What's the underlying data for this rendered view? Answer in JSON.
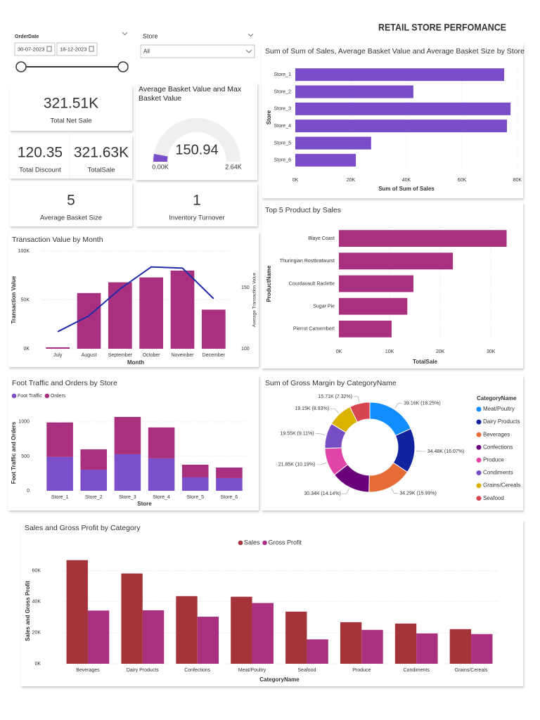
{
  "header": {
    "title": "RETAIL STORE PERFOMANCE"
  },
  "filters": [
    {
      "label": "OrderDate",
      "start": "30-07-2023",
      "end": "18-12-2023"
    },
    {
      "label": "Store",
      "value": "All"
    }
  ],
  "cards": [
    {
      "value": "321.51K",
      "label": "Total Net Sale"
    },
    {
      "value": "120.35",
      "label": "Total Discount"
    },
    {
      "value": "321.63K",
      "label": "TotalSale"
    },
    {
      "value": "5",
      "label": "Average Basket Size"
    },
    {
      "value": "1",
      "label": "Inventory Turnover"
    }
  ],
  "chart_data": [
    {
      "type": "gauge",
      "title": "Average Basket Value and Max Basket Value",
      "value": 150.94,
      "ylim": [
        0,
        2640
      ],
      "yticks": [
        {
          "value": 0,
          "label": "0.00K"
        },
        {
          "value": 2640,
          "label": "2.64K"
        }
      ],
      "color": "#7b4fc9"
    },
    {
      "type": "hbar",
      "title": "Sum of Sum of Sales, Average Basket Value and Average Basket Size by Store",
      "categories": [
        "Store_1",
        "Store_2",
        "Store_3",
        "Store_4",
        "Store_5",
        "Store_6"
      ],
      "values": [
        75200,
        42500,
        77500,
        76200,
        27300,
        21800
      ],
      "color": "#7b4cc8",
      "xlim": [
        0,
        80000
      ],
      "xticks": [
        {
          "value": 0,
          "label": "0K"
        },
        {
          "value": 20000,
          "label": "20K"
        },
        {
          "value": 40000,
          "label": "40K"
        },
        {
          "value": 60000,
          "label": "60K"
        },
        {
          "value": 80000,
          "label": "80K"
        }
      ],
      "xlabel": "Sum of Sum of Sales",
      "ylabel": "Store",
      "grid": true
    },
    {
      "type": "hbar",
      "title": "Top 5 Product by Sales",
      "categories": [
        "Blaye Coast",
        "Thuringian Rostbratwurst",
        "Courdavault Raclette",
        "Sugar Pie",
        "Pierrot Camembert"
      ],
      "values": [
        33100,
        22500,
        14700,
        13500,
        10400
      ],
      "color": "#a8307e",
      "xlim": [
        0,
        34000
      ],
      "xticks": [
        {
          "value": 0,
          "label": "0K"
        },
        {
          "value": 10000,
          "label": "10K"
        },
        {
          "value": 20000,
          "label": "20K"
        },
        {
          "value": 30000,
          "label": "30K"
        }
      ],
      "xlabel": "TotalSale",
      "ylabel": "ProductName",
      "grid": true
    },
    {
      "type": "combo",
      "title": "Transaction Value by Month",
      "categories": [
        "July",
        "August",
        "September",
        "October",
        "November",
        "December"
      ],
      "series": [
        {
          "type": "bar",
          "color": "#a8307e",
          "values": [
            1500,
            57000,
            68000,
            73000,
            80000,
            40000
          ]
        },
        {
          "type": "line",
          "axis": "y2",
          "color": "#1f2aa8",
          "values": [
            114,
            127,
            149,
            167,
            166,
            141
          ]
        }
      ],
      "ylim": [
        0,
        100000
      ],
      "yticks": [
        {
          "value": 0,
          "label": "0K"
        },
        {
          "value": 50000,
          "label": "50K"
        },
        {
          "value": 100000,
          "label": "100K"
        }
      ],
      "y2lim": [
        100,
        180
      ],
      "y2ticks": [
        100,
        150
      ],
      "xlabel": "Month",
      "ylabel": "Transaction Value",
      "y2label": "Average Transaction Value",
      "grid": true
    },
    {
      "type": "stacked",
      "title": "Foot Traffic and Orders by Store",
      "categories": [
        "Store_1",
        "Store_2",
        "Store_3",
        "Store_4",
        "Store_5",
        "Store_6"
      ],
      "series": [
        {
          "name": "Foot Traffic",
          "color": "#7b4fc9",
          "values": [
            490,
            306,
            530,
            470,
            194,
            184
          ]
        },
        {
          "name": "Orders",
          "color": "#a8307e",
          "values": [
            500,
            294,
            540,
            448,
            184,
            153
          ]
        }
      ],
      "ylim": [
        0,
        1100
      ],
      "yticks": [
        0,
        500,
        1000
      ],
      "xlabel": "Store",
      "ylabel": "Foot Traffic and Orders",
      "grid": true
    },
    {
      "type": "donut",
      "title": "Sum of Gross Margin by CategoryName",
      "legend_title": "CategoryName",
      "categories": [
        "Meat/Poultry",
        "Dairy Products",
        "Beverages",
        "Confections",
        "Produce",
        "Condiments",
        "Grains/Cereals",
        "Seafood"
      ],
      "values": [
        39160,
        34480,
        34290,
        30340,
        21850,
        19550,
        19150,
        15710
      ],
      "value_labels": [
        "39.16K (18.25%)",
        "34.48K (16.07%)",
        "34.29K (15.99%)",
        "30.34K (14.14%)",
        "21.85K (10.19%)",
        "19.55K (9.11%)",
        "19.15K (8.93%)",
        "15.71K (7.32%)"
      ],
      "colors": [
        "#118dff",
        "#12239e",
        "#e66c37",
        "#6b007b",
        "#e044a7",
        "#744ec2",
        "#d9b300",
        "#d64550"
      ]
    },
    {
      "type": "grouped",
      "title": "Sales and Gross Profit by Category",
      "categories": [
        "Beverages",
        "Dairy Products",
        "Confections",
        "Meat/Poultry",
        "Seafood",
        "Produce",
        "Condiments",
        "Grains/Cereals"
      ],
      "series": [
        {
          "name": "Sales",
          "color": "#a4343a",
          "values": [
            66800,
            58200,
            43600,
            43200,
            33600,
            26800,
            25900,
            22300
          ]
        },
        {
          "name": "Gross Profit",
          "color": "#a8307e",
          "values": [
            34290,
            34480,
            30340,
            39160,
            15710,
            21850,
            19550,
            19150
          ]
        }
      ],
      "ylim": [
        0,
        68000
      ],
      "yticks": [
        {
          "value": 0,
          "label": "0K"
        },
        {
          "value": 20000,
          "label": "20K"
        },
        {
          "value": 40000,
          "label": "40K"
        },
        {
          "value": 60000,
          "label": "60K"
        }
      ],
      "xlabel": "CategoryName",
      "ylabel": "Sales and Gross Profit",
      "grid": true
    }
  ]
}
